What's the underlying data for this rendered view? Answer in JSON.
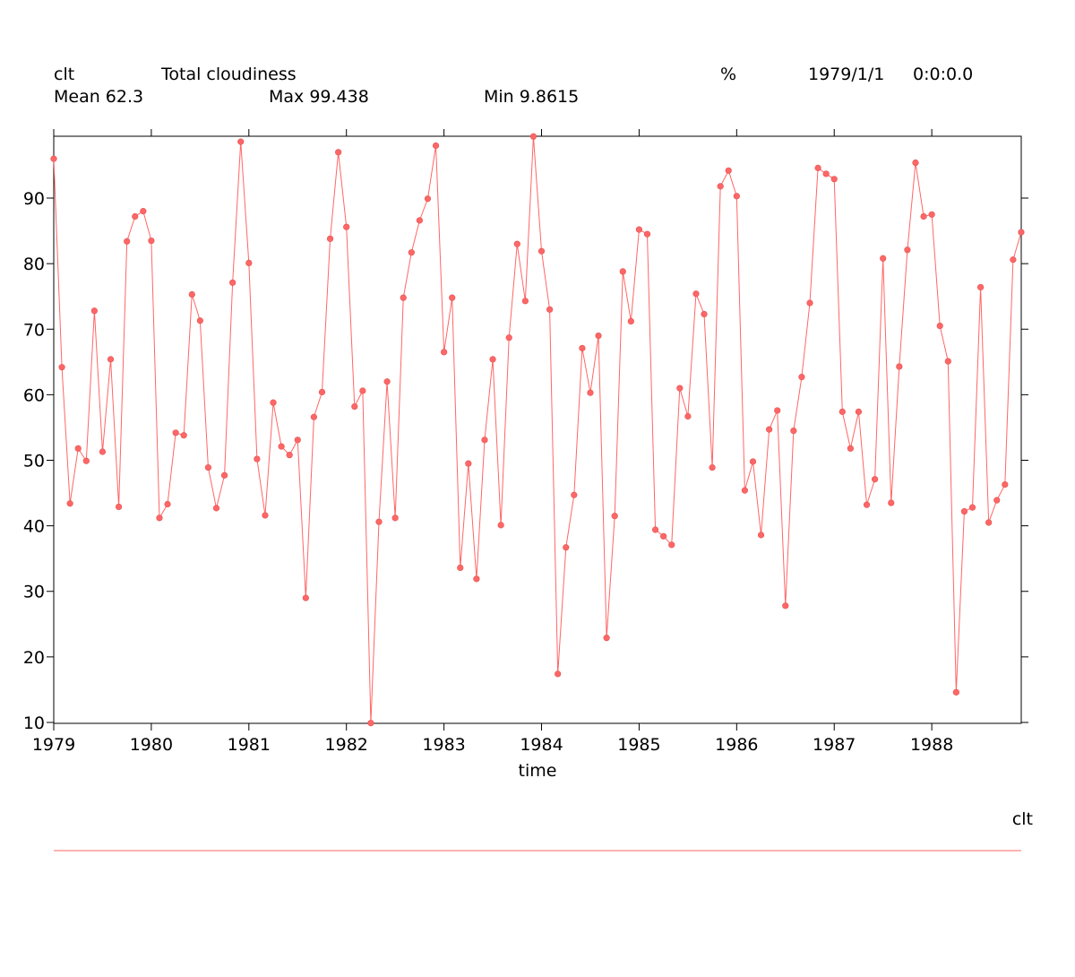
{
  "header": {
    "var_name": "clt",
    "long_name": "Total cloudiness",
    "units": "%",
    "date": "1979/1/1",
    "time": "0:0:0.0",
    "mean_label": "Mean 62.3",
    "max_label": "Max 99.438",
    "min_label": "Min 9.8615"
  },
  "chart_data": {
    "type": "line",
    "title": "Total cloudiness",
    "xlabel": "time",
    "ylabel": "",
    "xlim": [
      1979,
      1988.917
    ],
    "ylim": [
      9.8615,
      99.438
    ],
    "x_ticks": [
      1979,
      1980,
      1981,
      1982,
      1983,
      1984,
      1985,
      1986,
      1987,
      1988
    ],
    "y_ticks": [
      10,
      20,
      30,
      40,
      50,
      60,
      70,
      80,
      90
    ],
    "series": [
      {
        "name": "clt",
        "color": "#ff6666",
        "x_start": 1979,
        "x_step_months": 1,
        "values": [
          96.0,
          64.2,
          43.4,
          51.8,
          49.9,
          72.8,
          51.3,
          65.4,
          42.9,
          83.4,
          87.2,
          88.0,
          83.5,
          41.2,
          43.3,
          54.2,
          53.8,
          75.3,
          71.3,
          48.9,
          42.7,
          47.7,
          77.1,
          98.6,
          80.1,
          50.2,
          41.6,
          58.8,
          52.1,
          50.8,
          53.1,
          29.0,
          56.6,
          60.4,
          83.8,
          97.0,
          85.6,
          58.2,
          60.6,
          9.9,
          40.6,
          62.0,
          41.2,
          74.8,
          81.7,
          86.6,
          89.9,
          98.0,
          66.5,
          74.8,
          33.6,
          49.5,
          31.9,
          53.1,
          65.4,
          40.1,
          68.7,
          83.0,
          74.3,
          99.4,
          81.9,
          73.0,
          17.4,
          36.7,
          44.7,
          67.1,
          60.3,
          69.0,
          22.9,
          41.5,
          78.8,
          71.2,
          85.2,
          84.5,
          39.4,
          38.4,
          37.1,
          61.0,
          56.7,
          75.4,
          72.3,
          48.9,
          91.8,
          94.2,
          90.3,
          45.4,
          49.8,
          38.6,
          54.7,
          57.6,
          27.8,
          54.5,
          62.7,
          74.0,
          94.6,
          93.7,
          92.9,
          57.4,
          51.8,
          57.4,
          43.2,
          47.1,
          80.8,
          43.5,
          64.3,
          82.1,
          95.4,
          87.2,
          87.5,
          70.5,
          65.1,
          14.6,
          42.2,
          42.8,
          76.4,
          40.5,
          43.9,
          46.3,
          80.6,
          84.8
        ]
      }
    ],
    "legend": {
      "placement": "bottom-right",
      "label": "clt"
    },
    "grid": false
  }
}
